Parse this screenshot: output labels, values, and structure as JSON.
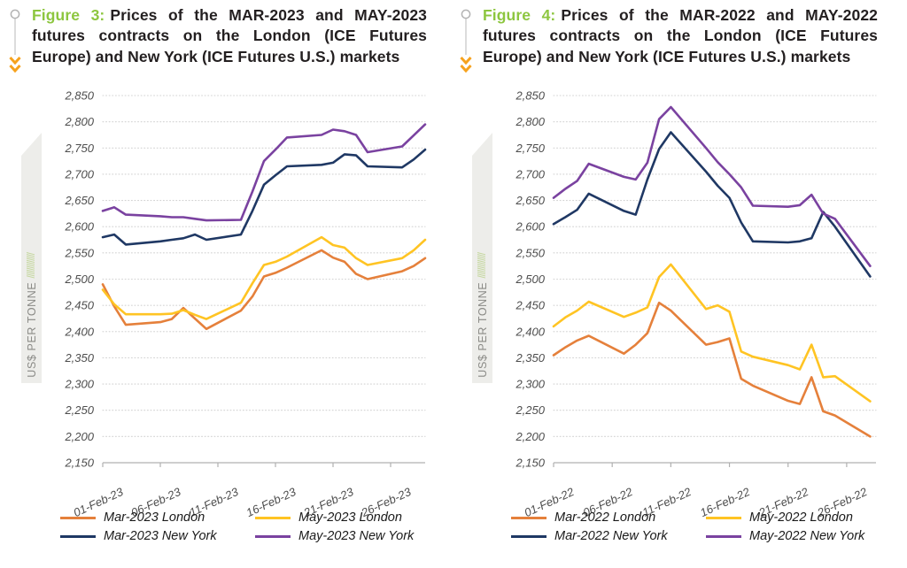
{
  "page": {
    "background": "#FFFFFF"
  },
  "figures": [
    {
      "label": "Figure 3:",
      "label_color": "#8DC63F",
      "title": "Prices of the MAR-2023 and MAY-2023 futures contracts on the London (ICE Futures Europe) and New York (ICE Futures U.S.) markets",
      "banner_text": "US$ PER TONNE",
      "banner_hatch": "/////////////"
    },
    {
      "label": "Figure 4:",
      "label_color": "#8DC63F",
      "title": "Prices of the MAR-2022 and MAY-2022 futures contracts on the London (ICE Futures Europe) and New York (ICE Futures U.S.) markets",
      "banner_text": "US$ PER TONNE",
      "banner_hatch": "/////////////"
    }
  ],
  "chart_data": [
    {
      "type": "line",
      "figure": "Figure 3",
      "title": "Prices of the MAR-2023 and MAY-2023 futures contracts on the London (ICE Futures Europe) and New York (ICE Futures U.S.) markets",
      "ylabel": "US$ PER TONNE",
      "ylim": [
        2150,
        2850
      ],
      "ytick_step": 50,
      "grid": "horizontal-dotted",
      "legend_position": "bottom",
      "x_unit": "calendar days of February 2023 (trading days only, weekends bridged)",
      "xlim_days": [
        1,
        29
      ],
      "xtick_days": [
        1,
        6,
        11,
        16,
        21,
        26
      ],
      "xtick_labels": [
        "01-Feb-23",
        "06-Feb-23",
        "11-Feb-23",
        "16-Feb-23",
        "21-Feb-23",
        "26-Feb-23"
      ],
      "days": [
        1,
        2,
        3,
        6,
        7,
        8,
        9,
        10,
        13,
        14,
        15,
        16,
        17,
        20,
        21,
        22,
        23,
        24,
        27,
        28,
        29
      ],
      "series": [
        {
          "name": "Mar-2023 London",
          "color": "#E5803B",
          "values": [
            2490,
            2448,
            2413,
            2418,
            2424,
            2445,
            2425,
            2405,
            2440,
            2467,
            2505,
            2512,
            2522,
            2555,
            2541,
            2533,
            2510,
            2500,
            2515,
            2525,
            2540
          ]
        },
        {
          "name": "May-2023 London",
          "color": "#FFC423",
          "values": [
            2480,
            2452,
            2433,
            2433,
            2434,
            2441,
            2432,
            2424,
            2455,
            2492,
            2527,
            2533,
            2543,
            2580,
            2565,
            2560,
            2540,
            2527,
            2540,
            2555,
            2575
          ]
        },
        {
          "name": "Mar-2023 New York",
          "color": "#1F3864",
          "values": [
            2580,
            2585,
            2566,
            2572,
            2575,
            2578,
            2585,
            2575,
            2585,
            2630,
            2680,
            2698,
            2715,
            2718,
            2722,
            2738,
            2736,
            2715,
            2713,
            2728,
            2747
          ]
        },
        {
          "name": "May-2023 New York",
          "color": "#7A42A0",
          "values": [
            2630,
            2637,
            2623,
            2620,
            2618,
            2618,
            2615,
            2612,
            2613,
            2667,
            2725,
            2747,
            2770,
            2775,
            2785,
            2782,
            2775,
            2742,
            2753,
            2774,
            2795
          ]
        }
      ]
    },
    {
      "type": "line",
      "figure": "Figure 4",
      "title": "Prices of the MAR-2022 and MAY-2022 futures contracts on the London (ICE Futures Europe) and New York (ICE Futures U.S.) markets",
      "ylabel": "US$ PER TONNE",
      "ylim": [
        2150,
        2850
      ],
      "ytick_step": 50,
      "grid": "horizontal-dotted",
      "legend_position": "bottom",
      "x_unit": "calendar days of February 2022 (trading days only, weekends bridged)",
      "xlim_days": [
        1,
        28.5
      ],
      "xtick_days": [
        1,
        6,
        11,
        16,
        21,
        26
      ],
      "xtick_labels": [
        "01-Feb-22",
        "06-Feb-22",
        "11-Feb-22",
        "16-Feb-22",
        "21-Feb-22",
        "26-Feb-22"
      ],
      "days": [
        1,
        2,
        3,
        4,
        7,
        8,
        9,
        10,
        11,
        14,
        15,
        16,
        17,
        18,
        21,
        22,
        23,
        24,
        25,
        28
      ],
      "series": [
        {
          "name": "Mar-2022 London",
          "color": "#E5803B",
          "values": [
            2355,
            2370,
            2383,
            2392,
            2358,
            2375,
            2397,
            2455,
            2440,
            2375,
            2380,
            2387,
            2310,
            2297,
            2268,
            2262,
            2313,
            2248,
            2240,
            2200
          ]
        },
        {
          "name": "May-2022 London",
          "color": "#FFC423",
          "values": [
            2410,
            2427,
            2440,
            2457,
            2428,
            2436,
            2446,
            2504,
            2528,
            2443,
            2450,
            2438,
            2362,
            2352,
            2336,
            2328,
            2375,
            2313,
            2315,
            2267
          ]
        },
        {
          "name": "Mar-2022 New York",
          "color": "#1F3864",
          "values": [
            2605,
            2618,
            2632,
            2663,
            2630,
            2623,
            2690,
            2748,
            2780,
            2705,
            2678,
            2655,
            2608,
            2572,
            2570,
            2572,
            2578,
            2628,
            2600,
            2505
          ]
        },
        {
          "name": "May-2022 New York",
          "color": "#7A42A0",
          "values": [
            2655,
            2672,
            2687,
            2720,
            2695,
            2690,
            2722,
            2805,
            2828,
            2750,
            2723,
            2700,
            2675,
            2640,
            2638,
            2641,
            2661,
            2625,
            2615,
            2525
          ]
        }
      ]
    }
  ]
}
